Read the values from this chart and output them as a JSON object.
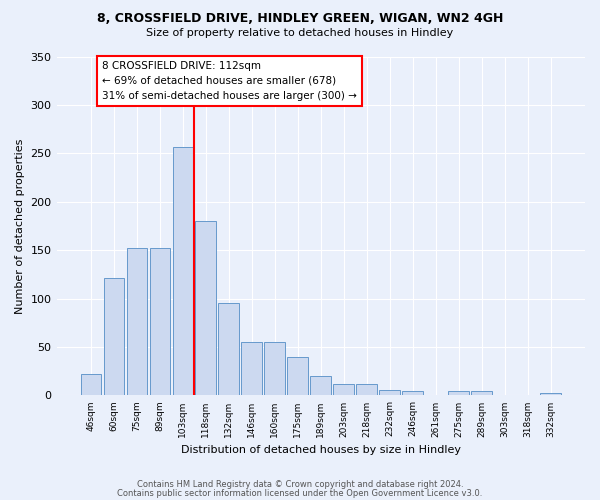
{
  "title1": "8, CROSSFIELD DRIVE, HINDLEY GREEN, WIGAN, WN2 4GH",
  "title2": "Size of property relative to detached houses in Hindley",
  "xlabel": "Distribution of detached houses by size in Hindley",
  "ylabel": "Number of detached properties",
  "categories": [
    "46sqm",
    "60sqm",
    "75sqm",
    "89sqm",
    "103sqm",
    "118sqm",
    "132sqm",
    "146sqm",
    "160sqm",
    "175sqm",
    "189sqm",
    "203sqm",
    "218sqm",
    "232sqm",
    "246sqm",
    "261sqm",
    "275sqm",
    "289sqm",
    "303sqm",
    "318sqm",
    "332sqm"
  ],
  "values": [
    22,
    121,
    152,
    152,
    257,
    180,
    95,
    55,
    55,
    40,
    20,
    12,
    12,
    6,
    5,
    0,
    5,
    5,
    0,
    0,
    3
  ],
  "bar_color": "#ccd9f0",
  "bar_edge_color": "#6699cc",
  "vline_color": "red",
  "annotation_title": "8 CROSSFIELD DRIVE: 112sqm",
  "annotation_line2": "← 69% of detached houses are smaller (678)",
  "annotation_line3": "31% of semi-detached houses are larger (300) →",
  "annotation_box_color": "white",
  "annotation_box_edge": "red",
  "ylim": [
    0,
    350
  ],
  "yticks": [
    0,
    50,
    100,
    150,
    200,
    250,
    300,
    350
  ],
  "bg_color": "#eaf0fb",
  "grid_color": "white",
  "footer1": "Contains HM Land Registry data © Crown copyright and database right 2024.",
  "footer2": "Contains public sector information licensed under the Open Government Licence v3.0."
}
